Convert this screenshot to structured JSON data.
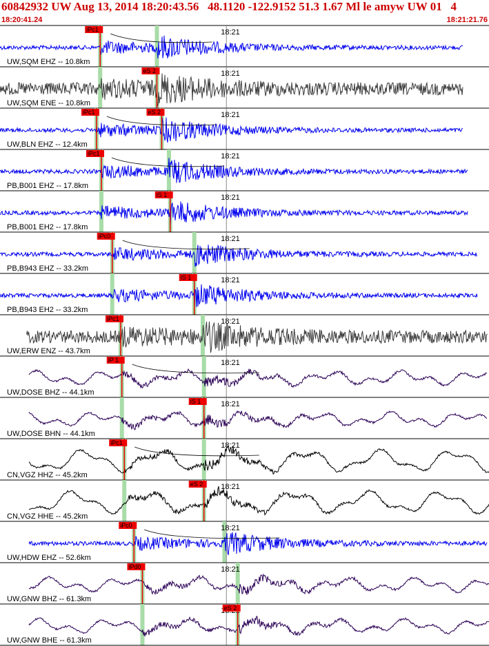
{
  "header": {
    "title": "60842932 UW Aug 13, 2014 18:20:43.56   48.1120 -122.9152 51.3 1.67 Ml le amyw UW 01   4",
    "time_start": "18:20:41.24",
    "time_end": "18:21:21.76",
    "tick_label": "18:21"
  },
  "colors": {
    "blue": "#0000ee",
    "gray": "#3a3a3a",
    "purple": "#2a0055",
    "black": "#000000",
    "red": "#ee0000",
    "green": "#a8dca8"
  },
  "traces": [
    {
      "label": "UW,SQM EHZ -- 10.8km",
      "color": "blue",
      "pick": "iPc1",
      "spick": "",
      "pt": 8.3,
      "st": 13.0,
      "start": 0.0,
      "end": 38.4,
      "curve": true
    },
    {
      "label": "UW,SQM ENE -- 10.8km",
      "color": "gray",
      "pick": "",
      "spick": "eS 2",
      "pt": 8.3,
      "st": 13.0,
      "start": 0.0,
      "end": 38.4,
      "curve": false
    },
    {
      "label": "UW,BLN EHZ -- 12.4km",
      "color": "blue",
      "pick": "iPc1",
      "spick": "eS 2",
      "pt": 8.0,
      "st": 13.4,
      "start": 0.0,
      "end": 38.4,
      "curve": true
    },
    {
      "label": "PB,B001 EHZ -- 17.8km",
      "color": "blue",
      "pick": "iPc1",
      "spick": "",
      "pt": 8.4,
      "st": 14.0,
      "start": 0.0,
      "end": 38.8,
      "curve": true
    },
    {
      "label": "PB,B001 EH2 -- 17.8km",
      "color": "blue",
      "pick": "",
      "spick": "iS 1",
      "pt": 8.4,
      "st": 14.1,
      "start": 0.0,
      "end": 38.8,
      "curve": false
    },
    {
      "label": "PB,B943 EHZ -- 33.2km",
      "color": "blue",
      "pick": "iPc0",
      "spick": "",
      "pt": 9.3,
      "st": 16.1,
      "start": 0.0,
      "end": 39.6,
      "curve": true
    },
    {
      "label": "PB,B943 EH2 -- 33.2km",
      "color": "blue",
      "pick": "",
      "spick": "iS 1",
      "pt": 9.3,
      "st": 16.1,
      "start": 0.0,
      "end": 39.6,
      "curve": false
    },
    {
      "label": "UW,ERW ENZ -- 43.7km",
      "color": "gray",
      "pick": "iPc1",
      "spick": "",
      "pt": 10.0,
      "st": 16.8,
      "start": 2.2,
      "end": 40.4,
      "curve": false
    },
    {
      "label": "UW,DOSE BHZ -- 44.1km",
      "color": "purple",
      "pick": "iP 1",
      "spick": "",
      "pt": 10.1,
      "st": 16.9,
      "start": 2.4,
      "end": 40.4,
      "curve": true
    },
    {
      "label": "UW,DOSE BHN -- 44.1km",
      "color": "purple",
      "pick": "",
      "spick": "iS 1",
      "pt": 10.1,
      "st": 16.9,
      "start": 2.4,
      "end": 40.4,
      "curve": false
    },
    {
      "label": "CN,VGZ HHZ -- 45.2km",
      "color": "black",
      "pick": "iPc1",
      "spick": "",
      "pt": 10.3,
      "st": 16.9,
      "start": 2.4,
      "end": 40.6,
      "curve": true
    },
    {
      "label": "CN,VGZ HHE -- 45.2km",
      "color": "black",
      "pick": "",
      "spick": "eS 2",
      "pt": 10.3,
      "st": 16.9,
      "start": 2.4,
      "end": 40.6,
      "curve": false
    },
    {
      "label": "UW,HDW EHZ -- 52.6km",
      "color": "blue",
      "pick": "iPc0",
      "spick": "",
      "pt": 11.1,
      "st": 18.6,
      "start": 2.4,
      "end": 40.4,
      "curve": true
    },
    {
      "label": "UW,GNW BHZ -- 61.3km",
      "color": "purple",
      "pick": "iPd0",
      "spick": "",
      "pt": 11.8,
      "st": 19.7,
      "start": 2.4,
      "end": 40.6,
      "curve": false
    },
    {
      "label": "UW,GNW BHE -- 61.3km",
      "color": "purple",
      "pick": "",
      "spick": "eS 2",
      "pt": 11.8,
      "st": 19.7,
      "start": 2.4,
      "end": 40.6,
      "curve": false
    }
  ]
}
